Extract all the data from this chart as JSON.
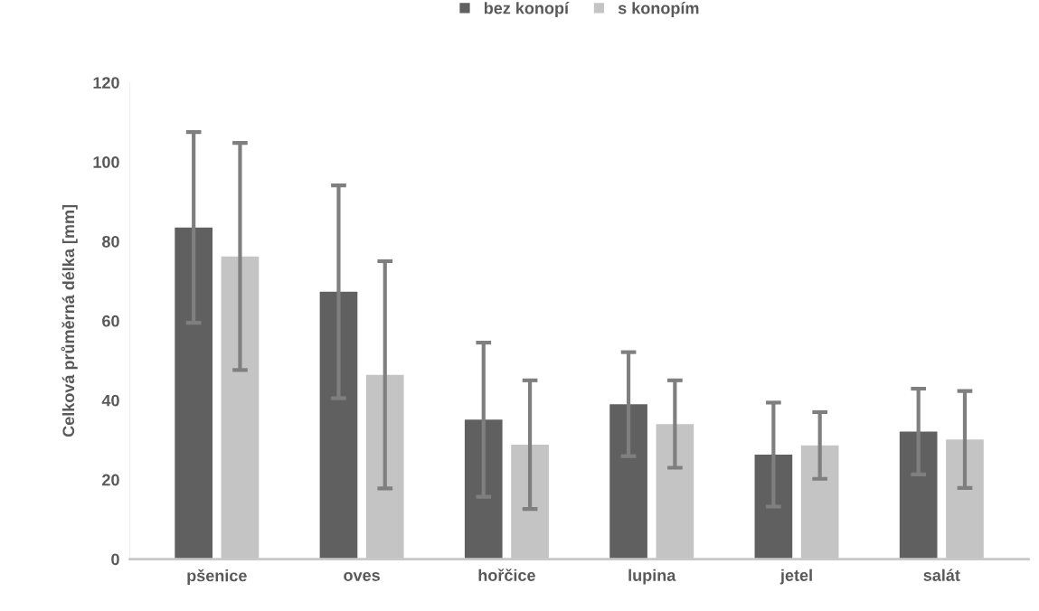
{
  "chart_data": {
    "type": "bar",
    "ylabel": "Celková průměrná délka [mm]",
    "categories": [
      "pšenice",
      "oves",
      "hořčice",
      "lupina",
      "jetel",
      "salát"
    ],
    "series": [
      {
        "name": "bez konopí",
        "color": "#606060",
        "values": [
          83.5,
          67.3,
          35.1,
          39.0,
          26.3,
          32.1
        ],
        "errors": [
          24.0,
          26.8,
          19.4,
          13.1,
          13.1,
          10.8
        ]
      },
      {
        "name": "s konopím",
        "color": "#c4c4c4",
        "values": [
          76.2,
          46.4,
          28.8,
          34.0,
          28.6,
          30.1
        ],
        "errors": [
          28.6,
          28.6,
          16.2,
          11.0,
          8.4,
          12.2
        ]
      }
    ],
    "ylim": [
      0,
      120
    ],
    "yticks": [
      0,
      20,
      40,
      60,
      80,
      100,
      120
    ],
    "grid": false,
    "legend": "top"
  }
}
